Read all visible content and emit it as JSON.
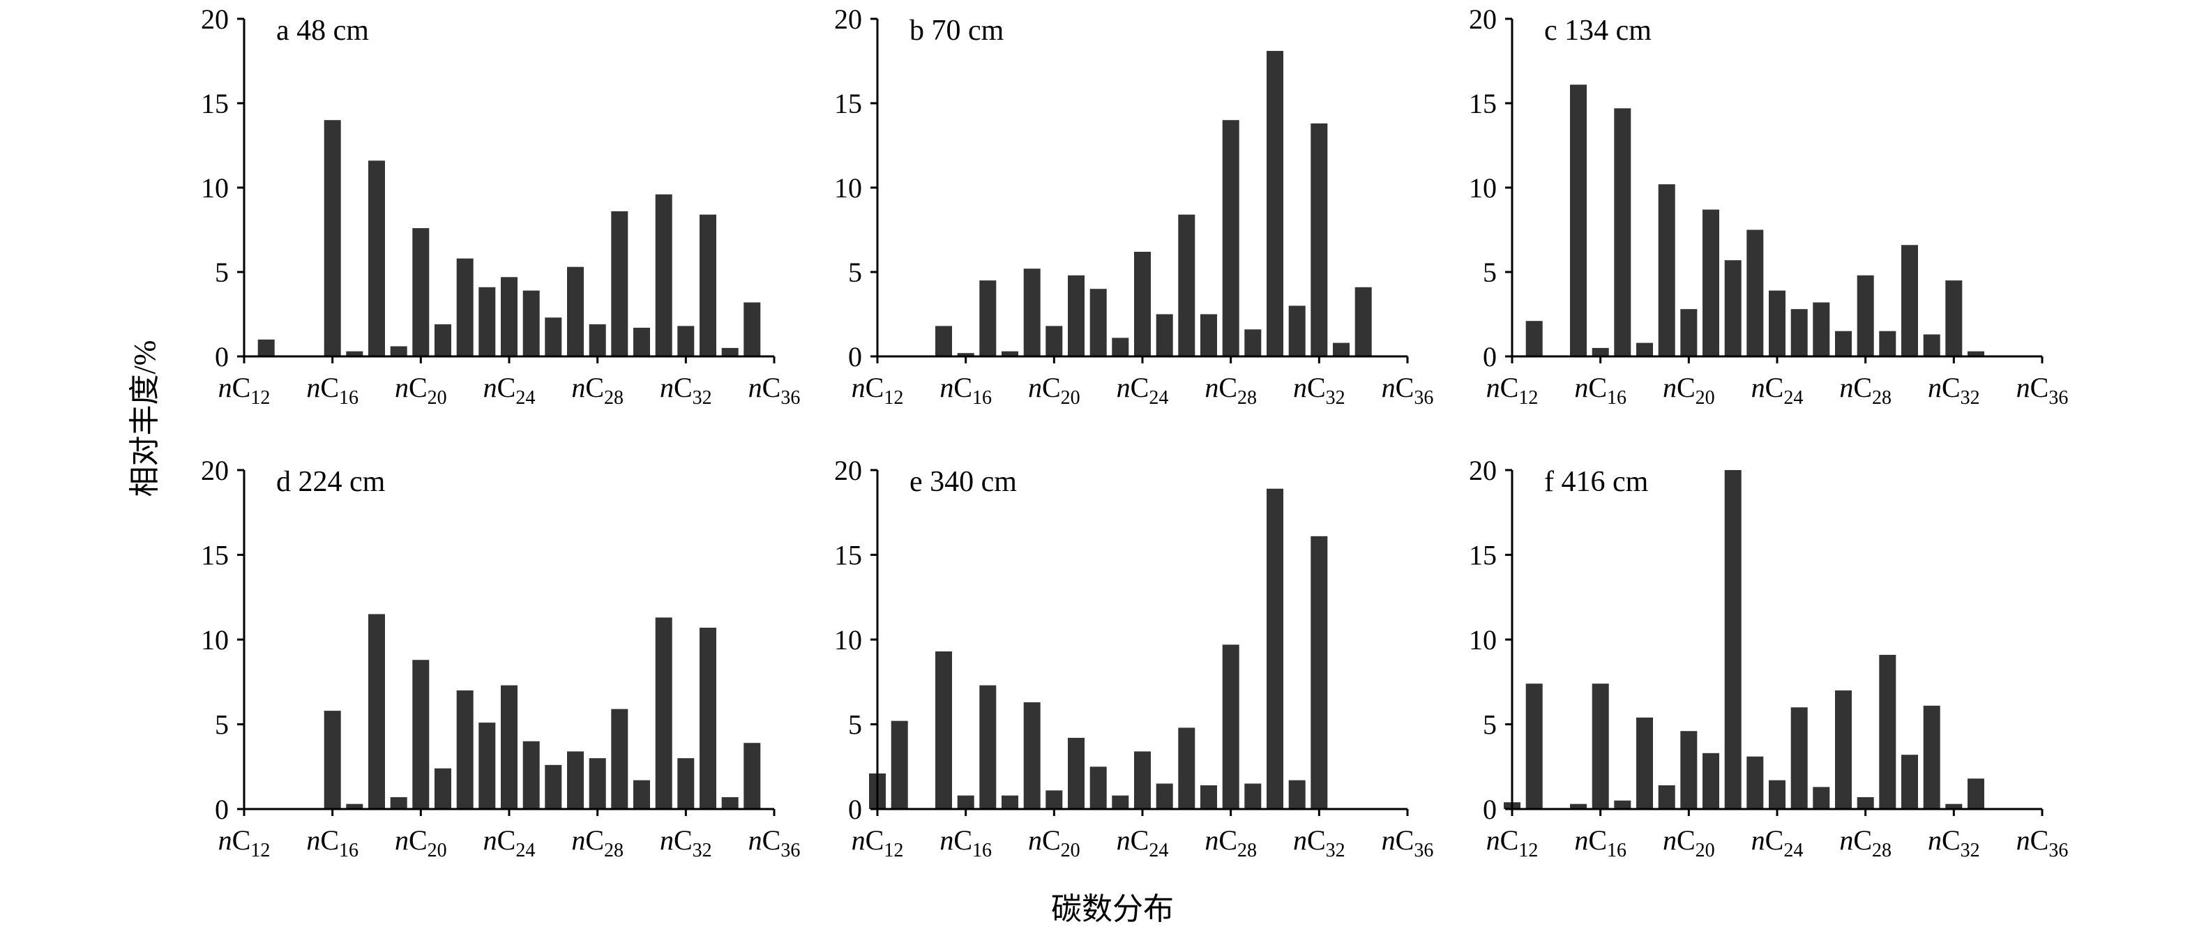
{
  "figure": {
    "ylabel": "相对丰度/%",
    "xlabel": "碳数分布"
  },
  "chart_data": [
    {
      "type": "bar",
      "panel": "a",
      "title": "a 48 cm",
      "x": [
        12,
        13,
        14,
        15,
        16,
        17,
        18,
        19,
        20,
        21,
        22,
        23,
        24,
        25,
        26,
        27,
        28,
        29,
        30,
        31,
        32,
        33,
        34,
        35,
        36
      ],
      "values": [
        0,
        1.0,
        0,
        0,
        14.0,
        0.3,
        11.6,
        0.6,
        7.6,
        1.9,
        5.8,
        4.1,
        4.7,
        3.9,
        2.3,
        5.3,
        1.9,
        8.6,
        1.7,
        9.6,
        1.8,
        8.4,
        0.5,
        3.2,
        0
      ],
      "ylim": [
        0,
        20
      ],
      "yticks": [
        0,
        5,
        10,
        15,
        20
      ],
      "xticks": [
        {
          "value": 12,
          "prefix": "n",
          "main": "C",
          "sub": "12"
        },
        {
          "value": 16,
          "prefix": "n",
          "main": "C",
          "sub": "16"
        },
        {
          "value": 20,
          "prefix": "n",
          "main": "C",
          "sub": "20"
        },
        {
          "value": 24,
          "prefix": "n",
          "main": "C",
          "sub": "24"
        },
        {
          "value": 28,
          "prefix": "n",
          "main": "C",
          "sub": "28"
        },
        {
          "value": 32,
          "prefix": "n",
          "main": "C",
          "sub": "32"
        },
        {
          "value": 36,
          "prefix": "n",
          "main": "C",
          "sub": "36"
        }
      ]
    },
    {
      "type": "bar",
      "panel": "b",
      "title": "b 70 cm",
      "x": [
        12,
        13,
        14,
        15,
        16,
        17,
        18,
        19,
        20,
        21,
        22,
        23,
        24,
        25,
        26,
        27,
        28,
        29,
        30,
        31,
        32,
        33,
        34,
        35,
        36
      ],
      "values": [
        0,
        0,
        0,
        1.8,
        0.2,
        4.5,
        0.3,
        5.2,
        1.8,
        4.8,
        4.0,
        1.1,
        6.2,
        2.5,
        8.4,
        2.5,
        14.0,
        1.6,
        18.1,
        3.0,
        13.8,
        0.8,
        4.1,
        0,
        0
      ],
      "ylim": [
        0,
        20
      ],
      "yticks": [
        0,
        5,
        10,
        15,
        20
      ],
      "xticks": [
        {
          "value": 12,
          "prefix": "n",
          "main": "C",
          "sub": "12"
        },
        {
          "value": 16,
          "prefix": "n",
          "main": "C",
          "sub": "16"
        },
        {
          "value": 20,
          "prefix": "n",
          "main": "C",
          "sub": "20"
        },
        {
          "value": 24,
          "prefix": "n",
          "main": "C",
          "sub": "24"
        },
        {
          "value": 28,
          "prefix": "n",
          "main": "C",
          "sub": "28"
        },
        {
          "value": 32,
          "prefix": "n",
          "main": "C",
          "sub": "32"
        },
        {
          "value": 36,
          "prefix": "n",
          "main": "C",
          "sub": "36"
        }
      ]
    },
    {
      "type": "bar",
      "panel": "c",
      "title": "c 134 cm",
      "x": [
        12,
        13,
        14,
        15,
        16,
        17,
        18,
        19,
        20,
        21,
        22,
        23,
        24,
        25,
        26,
        27,
        28,
        29,
        30,
        31,
        32,
        33,
        34,
        35,
        36
      ],
      "values": [
        0,
        2.1,
        0,
        16.1,
        0.5,
        14.7,
        0.8,
        10.2,
        2.8,
        8.7,
        5.7,
        7.5,
        3.9,
        2.8,
        3.2,
        1.5,
        4.8,
        1.5,
        6.6,
        1.3,
        4.5,
        0.3,
        0,
        0,
        0
      ],
      "ylim": [
        0,
        20
      ],
      "yticks": [
        0,
        5,
        10,
        15,
        20
      ],
      "xticks": [
        {
          "value": 12,
          "prefix": "n",
          "main": "C",
          "sub": "12"
        },
        {
          "value": 16,
          "prefix": "n",
          "main": "C",
          "sub": "16"
        },
        {
          "value": 20,
          "prefix": "n",
          "main": "C",
          "sub": "20"
        },
        {
          "value": 24,
          "prefix": "n",
          "main": "C",
          "sub": "24"
        },
        {
          "value": 28,
          "prefix": "n",
          "main": "C",
          "sub": "28"
        },
        {
          "value": 32,
          "prefix": "n",
          "main": "C",
          "sub": "32"
        },
        {
          "value": 36,
          "prefix": "n",
          "main": "C",
          "sub": "36"
        }
      ]
    },
    {
      "type": "bar",
      "panel": "d",
      "title": "d 224 cm",
      "x": [
        12,
        13,
        14,
        15,
        16,
        17,
        18,
        19,
        20,
        21,
        22,
        23,
        24,
        25,
        26,
        27,
        28,
        29,
        30,
        31,
        32,
        33,
        34,
        35,
        36
      ],
      "values": [
        0,
        0,
        0,
        0,
        5.8,
        0.3,
        11.5,
        0.7,
        8.8,
        2.4,
        7.0,
        5.1,
        7.3,
        4.0,
        2.6,
        3.4,
        3.0,
        5.9,
        1.7,
        11.3,
        3.0,
        10.7,
        0.7,
        3.9,
        0
      ],
      "ylim": [
        0,
        20
      ],
      "yticks": [
        0,
        5,
        10,
        15,
        20
      ],
      "xticks": [
        {
          "value": 12,
          "prefix": "n",
          "main": "C",
          "sub": "12"
        },
        {
          "value": 16,
          "prefix": "n",
          "main": "C",
          "sub": "16"
        },
        {
          "value": 20,
          "prefix": "n",
          "main": "C",
          "sub": "20"
        },
        {
          "value": 24,
          "prefix": "n",
          "main": "C",
          "sub": "24"
        },
        {
          "value": 28,
          "prefix": "n",
          "main": "C",
          "sub": "28"
        },
        {
          "value": 32,
          "prefix": "n",
          "main": "C",
          "sub": "32"
        },
        {
          "value": 36,
          "prefix": "n",
          "main": "C",
          "sub": "36"
        }
      ]
    },
    {
      "type": "bar",
      "panel": "e",
      "title": "e 340 cm",
      "x": [
        12,
        13,
        14,
        15,
        16,
        17,
        18,
        19,
        20,
        21,
        22,
        23,
        24,
        25,
        26,
        27,
        28,
        29,
        30,
        31,
        32,
        33,
        34,
        35,
        36
      ],
      "values": [
        2.1,
        5.2,
        0,
        9.3,
        0.8,
        7.3,
        0.8,
        6.3,
        1.1,
        4.2,
        2.5,
        0.8,
        3.4,
        1.5,
        4.8,
        1.4,
        9.7,
        1.5,
        18.9,
        1.7,
        16.1,
        0,
        0,
        0,
        0
      ],
      "ylim": [
        0,
        20
      ],
      "yticks": [
        0,
        5,
        10,
        15,
        20
      ],
      "xticks": [
        {
          "value": 12,
          "prefix": "n",
          "main": "C",
          "sub": "12"
        },
        {
          "value": 16,
          "prefix": "n",
          "main": "C",
          "sub": "16"
        },
        {
          "value": 20,
          "prefix": "n",
          "main": "C",
          "sub": "20"
        },
        {
          "value": 24,
          "prefix": "n",
          "main": "C",
          "sub": "24"
        },
        {
          "value": 28,
          "prefix": "n",
          "main": "C",
          "sub": "28"
        },
        {
          "value": 32,
          "prefix": "n",
          "main": "C",
          "sub": "32"
        },
        {
          "value": 36,
          "prefix": "n",
          "main": "C",
          "sub": "36"
        }
      ]
    },
    {
      "type": "bar",
      "panel": "f",
      "title": "f 416 cm",
      "x": [
        12,
        13,
        14,
        15,
        16,
        17,
        18,
        19,
        20,
        21,
        22,
        23,
        24,
        25,
        26,
        27,
        28,
        29,
        30,
        31,
        32,
        33,
        34,
        35,
        36
      ],
      "values": [
        0.4,
        7.4,
        0,
        0.3,
        7.4,
        0.5,
        5.4,
        1.4,
        4.6,
        3.3,
        20.0,
        3.1,
        1.7,
        6.0,
        1.3,
        7.0,
        0.7,
        9.1,
        3.2,
        6.1,
        0.3,
        1.8,
        0,
        0,
        0
      ],
      "ylim": [
        0,
        20
      ],
      "yticks": [
        0,
        5,
        10,
        15,
        20
      ],
      "xticks": [
        {
          "value": 12,
          "prefix": "n",
          "main": "C",
          "sub": "12"
        },
        {
          "value": 16,
          "prefix": "n",
          "main": "C",
          "sub": "16"
        },
        {
          "value": 20,
          "prefix": "n",
          "main": "C",
          "sub": "20"
        },
        {
          "value": 24,
          "prefix": "n",
          "main": "C",
          "sub": "24"
        },
        {
          "value": 28,
          "prefix": "n",
          "main": "C",
          "sub": "28"
        },
        {
          "value": 32,
          "prefix": "n",
          "main": "C",
          "sub": "32"
        },
        {
          "value": 36,
          "prefix": "n",
          "main": "C",
          "sub": "36"
        }
      ]
    }
  ]
}
